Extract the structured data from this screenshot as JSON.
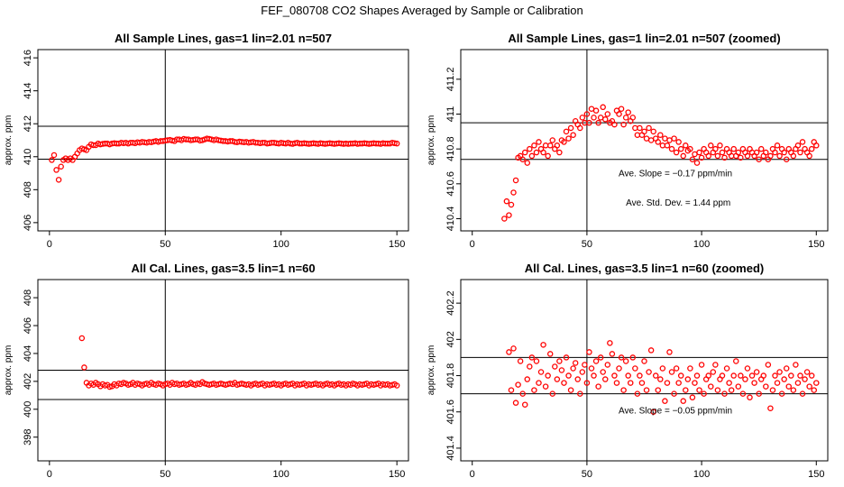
{
  "page": {
    "title": "FEF_080708  CO2 Shapes Averaged by Sample or Calibration"
  },
  "chart_data": [
    {
      "id": "sample-full",
      "type": "scatter",
      "title": "All Sample Lines, gas=1 lin=2.01 n=507",
      "xlabel": "",
      "ylabel": "approx. ppm",
      "xlim": [
        -5,
        155
      ],
      "ylim": [
        405.5,
        416.5
      ],
      "xticks": [
        0,
        50,
        100,
        150
      ],
      "yticks": [
        406,
        408,
        410,
        412,
        414,
        416
      ],
      "yticklabels": [
        "406",
        "408",
        "410",
        "412",
        "414",
        "416"
      ],
      "hlines": [
        409.85,
        411.85
      ],
      "vlines": [
        50
      ],
      "color": "#ff0000",
      "annotations": [],
      "x": [
        1,
        2,
        3,
        4,
        5,
        6,
        7,
        8,
        9,
        10,
        11,
        12,
        13,
        14,
        15,
        16,
        17,
        18,
        19,
        20,
        21,
        22,
        23,
        24,
        25,
        26,
        27,
        28,
        29,
        30,
        31,
        32,
        33,
        34,
        35,
        36,
        37,
        38,
        39,
        40,
        41,
        42,
        43,
        44,
        45,
        46,
        47,
        48,
        49,
        50,
        51,
        52,
        53,
        54,
        55,
        56,
        57,
        58,
        59,
        60,
        61,
        62,
        63,
        64,
        65,
        66,
        67,
        68,
        69,
        70,
        71,
        72,
        73,
        74,
        75,
        76,
        77,
        78,
        79,
        80,
        81,
        82,
        83,
        84,
        85,
        86,
        87,
        88,
        89,
        90,
        91,
        92,
        93,
        94,
        95,
        96,
        97,
        98,
        99,
        100,
        101,
        102,
        103,
        104,
        105,
        106,
        107,
        108,
        109,
        110,
        111,
        112,
        113,
        114,
        115,
        116,
        117,
        118,
        119,
        120,
        121,
        122,
        123,
        124,
        125,
        126,
        127,
        128,
        129,
        130,
        131,
        132,
        133,
        134,
        135,
        136,
        137,
        138,
        139,
        140,
        141,
        142,
        143,
        144,
        145,
        146,
        147,
        148,
        149,
        150
      ],
      "y": [
        409.8,
        410.1,
        409.2,
        408.6,
        409.4,
        409.8,
        409.9,
        409.8,
        409.9,
        409.8,
        410.0,
        410.2,
        410.4,
        410.5,
        410.45,
        410.4,
        410.6,
        410.75,
        410.7,
        410.7,
        410.8,
        410.75,
        410.78,
        410.8,
        410.8,
        410.75,
        410.8,
        410.82,
        410.8,
        410.8,
        410.85,
        410.82,
        410.85,
        410.8,
        410.85,
        410.85,
        410.82,
        410.88,
        410.85,
        410.9,
        410.88,
        410.85,
        410.9,
        410.88,
        410.92,
        410.95,
        410.9,
        410.95,
        410.95,
        410.98,
        411.0,
        411.02,
        410.98,
        410.95,
        411.05,
        411.05,
        411.0,
        411.08,
        411.05,
        411.05,
        411.0,
        411.02,
        411.05,
        411.05,
        410.98,
        411.0,
        411.05,
        411.1,
        411.08,
        411.05,
        411.0,
        411.05,
        411.0,
        410.98,
        410.95,
        410.95,
        410.92,
        410.95,
        410.95,
        410.9,
        410.88,
        410.92,
        410.9,
        410.88,
        410.9,
        410.85,
        410.88,
        410.9,
        410.85,
        410.85,
        410.82,
        410.85,
        410.85,
        410.8,
        410.82,
        410.85,
        410.85,
        410.82,
        410.8,
        410.85,
        410.82,
        410.8,
        410.85,
        410.8,
        410.78,
        410.82,
        410.85,
        410.8,
        410.8,
        410.82,
        410.8,
        410.78,
        410.8,
        410.82,
        410.8,
        410.78,
        410.82,
        410.8,
        410.78,
        410.8,
        410.82,
        410.8,
        410.78,
        410.8,
        410.82,
        410.8,
        410.78,
        410.8,
        410.78,
        410.8,
        410.8,
        410.82,
        410.78,
        410.8,
        410.8,
        410.82,
        410.8,
        410.78,
        410.8,
        410.82,
        410.8,
        410.8,
        410.78,
        410.82,
        410.8,
        410.8,
        410.8,
        410.85,
        410.82,
        410.8
      ]
    },
    {
      "id": "sample-zoomed",
      "type": "scatter",
      "title": "All Sample Lines, gas=1 lin=2.01 n=507 (zoomed)",
      "xlabel": "",
      "ylabel": "approx. ppm",
      "xlim": [
        -5,
        155
      ],
      "ylim": [
        410.33,
        411.37
      ],
      "xticks": [
        0,
        50,
        100,
        150
      ],
      "yticks": [
        410.4,
        410.6,
        410.8,
        411.0,
        411.2
      ],
      "yticklabels": [
        "410.4",
        "410.6",
        "410.8",
        "411",
        "411.2"
      ],
      "hlines": [
        410.74,
        410.95
      ],
      "vlines": [
        50
      ],
      "color": "#ff0000",
      "annotations": [
        "Ave. Slope =  −0.17  ppm/min",
        "Ave. Std. Dev. =  1.44  ppm"
      ],
      "x": [
        14,
        15,
        16,
        17,
        18,
        19,
        20,
        21,
        22,
        23,
        24,
        25,
        26,
        27,
        28,
        29,
        30,
        31,
        32,
        33,
        34,
        35,
        36,
        37,
        38,
        39,
        40,
        41,
        42,
        43,
        44,
        45,
        46,
        47,
        48,
        49,
        50,
        51,
        52,
        53,
        54,
        55,
        56,
        57,
        58,
        59,
        60,
        61,
        62,
        63,
        64,
        65,
        66,
        67,
        68,
        69,
        70,
        71,
        72,
        73,
        74,
        75,
        76,
        77,
        78,
        79,
        80,
        81,
        82,
        83,
        84,
        85,
        86,
        87,
        88,
        89,
        90,
        91,
        92,
        93,
        94,
        95,
        96,
        97,
        98,
        99,
        100,
        101,
        102,
        103,
        104,
        105,
        106,
        107,
        108,
        109,
        110,
        111,
        112,
        113,
        114,
        115,
        116,
        117,
        118,
        119,
        120,
        121,
        122,
        123,
        124,
        125,
        126,
        127,
        128,
        129,
        130,
        131,
        132,
        133,
        134,
        135,
        136,
        137,
        138,
        139,
        140,
        141,
        142,
        143,
        144,
        145,
        146,
        147,
        148,
        149,
        150
      ],
      "y": [
        410.4,
        410.5,
        410.42,
        410.48,
        410.55,
        410.62,
        410.75,
        410.76,
        410.74,
        410.78,
        410.72,
        410.8,
        410.76,
        410.82,
        410.78,
        410.84,
        410.8,
        410.78,
        410.82,
        410.76,
        410.82,
        410.85,
        410.8,
        410.82,
        410.78,
        410.85,
        410.84,
        410.9,
        410.86,
        410.92,
        410.88,
        410.96,
        410.94,
        410.92,
        410.98,
        410.95,
        411.0,
        410.95,
        411.03,
        410.98,
        411.02,
        410.95,
        410.98,
        411.04,
        410.97,
        411.0,
        410.95,
        410.96,
        410.94,
        411.02,
        411.0,
        411.03,
        410.94,
        410.98,
        411.01,
        410.96,
        410.98,
        410.92,
        410.88,
        410.92,
        410.88,
        410.9,
        410.86,
        410.92,
        410.85,
        410.9,
        410.86,
        410.84,
        410.88,
        410.82,
        410.86,
        410.82,
        410.85,
        410.8,
        410.86,
        410.78,
        410.84,
        410.8,
        410.76,
        410.82,
        410.79,
        410.8,
        410.74,
        410.77,
        410.72,
        410.78,
        410.75,
        410.8,
        410.78,
        410.76,
        410.82,
        410.78,
        410.8,
        410.76,
        410.82,
        410.78,
        410.75,
        410.8,
        410.78,
        410.76,
        410.8,
        410.76,
        410.78,
        410.75,
        410.8,
        410.78,
        410.76,
        410.8,
        410.78,
        410.76,
        410.78,
        410.74,
        410.8,
        410.76,
        410.78,
        410.74,
        410.76,
        410.8,
        410.78,
        410.82,
        410.76,
        410.8,
        410.78,
        410.74,
        410.8,
        410.78,
        410.76,
        410.8,
        410.82,
        410.78,
        410.84,
        410.8,
        410.78,
        410.76,
        410.8,
        410.84,
        410.82
      ]
    },
    {
      "id": "cal-full",
      "type": "scatter",
      "title": "All Cal. Lines, gas=3.5 lin=1 n=60",
      "xlabel": "",
      "ylabel": "approx. ppm",
      "xlim": [
        -5,
        155
      ],
      "ylim": [
        396.3,
        409.3
      ],
      "xticks": [
        0,
        50,
        100,
        150
      ],
      "yticks": [
        398,
        400,
        402,
        404,
        406,
        408
      ],
      "yticklabels": [
        "398",
        "400",
        "402",
        "404",
        "406",
        "408"
      ],
      "hlines": [
        400.7,
        402.8
      ],
      "vlines": [
        50
      ],
      "color": "#ff0000",
      "annotations": [],
      "x": [
        14,
        15,
        16,
        17,
        18,
        19,
        20,
        21,
        22,
        23,
        24,
        25,
        26,
        27,
        28,
        29,
        30,
        31,
        32,
        33,
        34,
        35,
        36,
        37,
        38,
        39,
        40,
        41,
        42,
        43,
        44,
        45,
        46,
        47,
        48,
        49,
        50,
        51,
        52,
        53,
        54,
        55,
        56,
        57,
        58,
        59,
        60,
        61,
        62,
        63,
        64,
        65,
        66,
        67,
        68,
        69,
        70,
        71,
        72,
        73,
        74,
        75,
        76,
        77,
        78,
        79,
        80,
        81,
        82,
        83,
        84,
        85,
        86,
        87,
        88,
        89,
        90,
        91,
        92,
        93,
        94,
        95,
        96,
        97,
        98,
        99,
        100,
        101,
        102,
        103,
        104,
        105,
        106,
        107,
        108,
        109,
        110,
        111,
        112,
        113,
        114,
        115,
        116,
        117,
        118,
        119,
        120,
        121,
        122,
        123,
        124,
        125,
        126,
        127,
        128,
        129,
        130,
        131,
        132,
        133,
        134,
        135,
        136,
        137,
        138,
        139,
        140,
        141,
        142,
        143,
        144,
        145,
        146,
        147,
        148,
        149,
        150
      ],
      "y": [
        405.1,
        403.0,
        401.9,
        401.7,
        401.85,
        401.75,
        401.9,
        401.8,
        401.65,
        401.8,
        401.7,
        401.75,
        401.6,
        401.65,
        401.8,
        401.7,
        401.85,
        401.8,
        401.9,
        401.85,
        401.75,
        401.8,
        401.9,
        401.75,
        401.85,
        401.8,
        401.7,
        401.8,
        401.85,
        401.75,
        401.9,
        401.8,
        401.75,
        401.85,
        401.8,
        401.7,
        401.8,
        401.85,
        401.75,
        401.9,
        401.8,
        401.85,
        401.75,
        401.8,
        401.85,
        401.75,
        401.8,
        401.9,
        401.8,
        401.75,
        401.85,
        401.8,
        401.95,
        401.85,
        401.8,
        401.75,
        401.8,
        401.85,
        401.75,
        401.8,
        401.85,
        401.8,
        401.75,
        401.8,
        401.85,
        401.8,
        401.9,
        401.75,
        401.8,
        401.85,
        401.8,
        401.75,
        401.8,
        401.7,
        401.8,
        401.85,
        401.75,
        401.8,
        401.85,
        401.7,
        401.8,
        401.75,
        401.8,
        401.85,
        401.75,
        401.8,
        401.7,
        401.8,
        401.85,
        401.75,
        401.8,
        401.85,
        401.7,
        401.8,
        401.75,
        401.8,
        401.85,
        401.7,
        401.8,
        401.75,
        401.8,
        401.85,
        401.75,
        401.8,
        401.7,
        401.8,
        401.85,
        401.75,
        401.8,
        401.7,
        401.8,
        401.85,
        401.75,
        401.8,
        401.7,
        401.8,
        401.75,
        401.85,
        401.8,
        401.7,
        401.8,
        401.75,
        401.8,
        401.85,
        401.7,
        401.8,
        401.75,
        401.8,
        401.85,
        401.7,
        401.8,
        401.75,
        401.8,
        401.7,
        401.75,
        401.8,
        401.7
      ]
    },
    {
      "id": "cal-zoomed",
      "type": "scatter",
      "title": "All Cal. Lines, gas=3.5 lin=1 n=60 (zoomed)",
      "xlabel": "",
      "ylabel": "approx. ppm",
      "xlim": [
        -5,
        155
      ],
      "ylim": [
        401.33,
        402.33
      ],
      "xticks": [
        0,
        50,
        100,
        150
      ],
      "yticks": [
        401.4,
        401.6,
        401.8,
        402.0,
        402.2
      ],
      "yticklabels": [
        "401.4",
        "401.6",
        "401.8",
        "402",
        "402.2"
      ],
      "hlines": [
        401.7,
        401.9
      ],
      "vlines": [
        50
      ],
      "color": "#ff0000",
      "annotations": [
        "Ave. Slope =  −0.05  ppm/min"
      ],
      "x": [
        16,
        17,
        18,
        19,
        20,
        21,
        22,
        23,
        24,
        25,
        26,
        27,
        28,
        29,
        30,
        31,
        32,
        33,
        34,
        35,
        36,
        37,
        38,
        39,
        40,
        41,
        42,
        43,
        44,
        45,
        46,
        47,
        48,
        49,
        50,
        51,
        52,
        53,
        54,
        55,
        56,
        57,
        58,
        59,
        60,
        61,
        62,
        63,
        64,
        65,
        66,
        67,
        68,
        69,
        70,
        71,
        72,
        73,
        74,
        75,
        76,
        77,
        78,
        79,
        80,
        81,
        82,
        83,
        84,
        85,
        86,
        87,
        88,
        89,
        90,
        91,
        92,
        93,
        94,
        95,
        96,
        97,
        98,
        99,
        100,
        101,
        102,
        103,
        104,
        105,
        106,
        107,
        108,
        109,
        110,
        111,
        112,
        113,
        114,
        115,
        116,
        117,
        118,
        119,
        120,
        121,
        122,
        123,
        124,
        125,
        126,
        127,
        128,
        129,
        130,
        131,
        132,
        133,
        134,
        135,
        136,
        137,
        138,
        139,
        140,
        141,
        142,
        143,
        144,
        145,
        146,
        147,
        148,
        149,
        150
      ],
      "y": [
        401.93,
        401.72,
        401.95,
        401.65,
        401.75,
        401.88,
        401.7,
        401.64,
        401.78,
        401.85,
        401.9,
        401.72,
        401.88,
        401.76,
        401.82,
        401.97,
        401.74,
        401.8,
        401.92,
        401.7,
        401.85,
        401.78,
        401.88,
        401.83,
        401.76,
        401.9,
        401.8,
        401.72,
        401.84,
        401.87,
        401.78,
        401.7,
        401.82,
        401.86,
        401.76,
        401.93,
        401.84,
        401.8,
        401.88,
        401.74,
        401.9,
        401.82,
        401.78,
        401.86,
        401.98,
        401.92,
        401.8,
        401.76,
        401.84,
        401.9,
        401.72,
        401.88,
        401.8,
        401.76,
        401.9,
        401.84,
        401.7,
        401.8,
        401.76,
        401.88,
        401.72,
        401.82,
        401.94,
        401.6,
        401.8,
        401.72,
        401.78,
        401.84,
        401.66,
        401.76,
        401.93,
        401.82,
        401.7,
        401.84,
        401.76,
        401.8,
        401.66,
        401.72,
        401.78,
        401.84,
        401.68,
        401.76,
        401.8,
        401.72,
        401.86,
        401.7,
        401.78,
        401.8,
        401.74,
        401.82,
        401.86,
        401.72,
        401.78,
        401.8,
        401.7,
        401.84,
        401.76,
        401.72,
        401.8,
        401.88,
        401.74,
        401.8,
        401.7,
        401.78,
        401.84,
        401.68,
        401.8,
        401.76,
        401.82,
        401.7,
        401.78,
        401.8,
        401.74,
        401.86,
        401.62,
        401.72,
        401.8,
        401.76,
        401.82,
        401.7,
        401.78,
        401.84,
        401.74,
        401.8,
        401.72,
        401.86,
        401.76,
        401.8,
        401.7,
        401.78,
        401.82,
        401.74,
        401.8,
        401.72,
        401.76
      ]
    }
  ]
}
